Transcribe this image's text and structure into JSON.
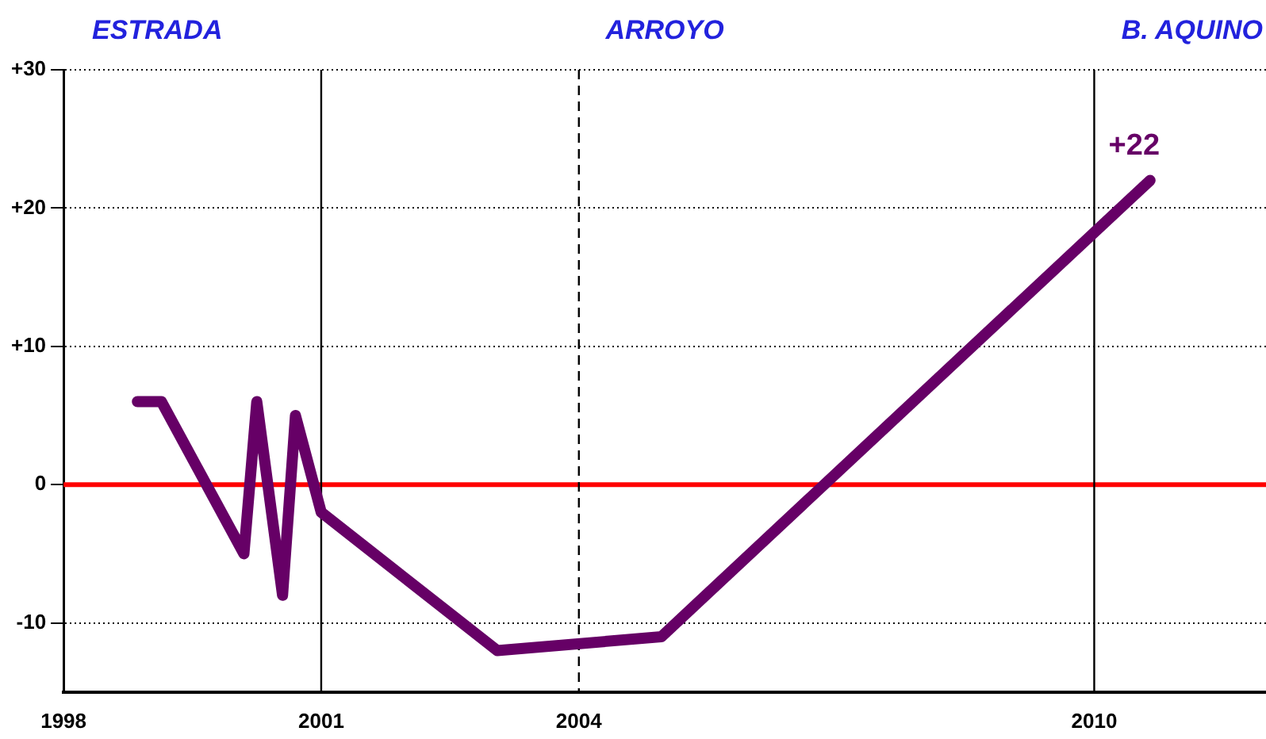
{
  "chart_data": {
    "type": "line",
    "annotations": [
      "ESTRADA",
      "ARROYO",
      "B. AQUINO"
    ],
    "x": [
      1998.86,
      1999.14,
      2000.1,
      2000.25,
      2000.55,
      2000.7,
      2001.0,
      2003.05,
      2004.96,
      2010.65
    ],
    "series": [
      {
        "color": "#660066",
        "values": [
          6,
          6,
          -5,
          6,
          -8,
          5,
          -2,
          -12,
          -11,
          22
        ],
        "value_labels": [
          null,
          null,
          null,
          null,
          null,
          null,
          null,
          null,
          null,
          "+22"
        ]
      }
    ],
    "xlim": [
      1998,
      2012
    ],
    "xticks": [
      1998,
      2001,
      2004,
      2010
    ],
    "ylim": [
      -15,
      30
    ],
    "yticks": [
      {
        "value": -10,
        "label": "-10"
      },
      {
        "value": 0,
        "label": "0"
      },
      {
        "value": 10,
        "label": "+10"
      },
      {
        "value": 20,
        "label": "+20"
      },
      {
        "value": 30,
        "label": "+30"
      }
    ],
    "ref_lines": [
      {
        "axis": "y",
        "value": 0,
        "color": "#ff0000",
        "line_style": "solid"
      },
      {
        "axis": "x",
        "value": 2001,
        "color": "#000000",
        "line_style": "solid"
      },
      {
        "axis": "x",
        "value": 2004,
        "color": "#000000",
        "line_style": "dashed"
      },
      {
        "axis": "x",
        "value": 2010,
        "color": "#000000",
        "line_style": "solid"
      }
    ],
    "grid": "y",
    "legend": false,
    "marker": "none",
    "line_style": "solid"
  }
}
